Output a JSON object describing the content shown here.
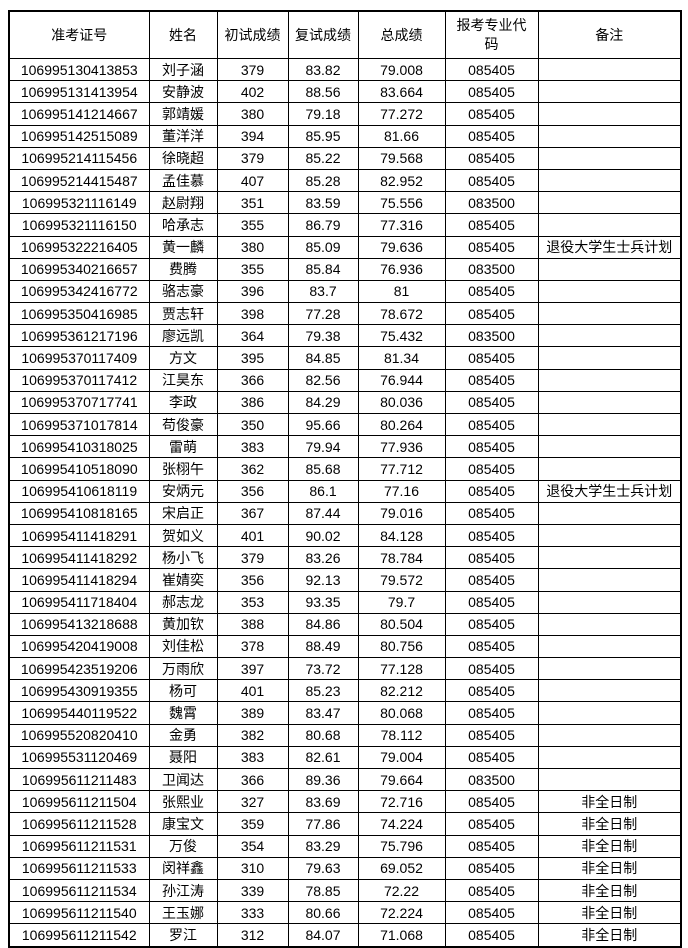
{
  "table": {
    "columns": [
      "准考证号",
      "姓名",
      "初试成绩",
      "复试成绩",
      "总成绩",
      "报考专业代码",
      "备注"
    ],
    "rows": [
      [
        "106995130413853",
        "刘子涵",
        "379",
        "83.82",
        "79.008",
        "085405",
        ""
      ],
      [
        "106995131413954",
        "安静波",
        "402",
        "88.56",
        "83.664",
        "085405",
        ""
      ],
      [
        "106995141214667",
        "郭靖媛",
        "380",
        "79.18",
        "77.272",
        "085405",
        ""
      ],
      [
        "106995142515089",
        "董洋洋",
        "394",
        "85.95",
        "81.66",
        "085405",
        ""
      ],
      [
        "106995214115456",
        "徐晓超",
        "379",
        "85.22",
        "79.568",
        "085405",
        ""
      ],
      [
        "106995214415487",
        "孟佳慕",
        "407",
        "85.28",
        "82.952",
        "085405",
        ""
      ],
      [
        "106995321116149",
        "赵尉翔",
        "351",
        "83.59",
        "75.556",
        "083500",
        ""
      ],
      [
        "106995321116150",
        "哈承志",
        "355",
        "86.79",
        "77.316",
        "085405",
        ""
      ],
      [
        "106995322216405",
        "黄一麟",
        "380",
        "85.09",
        "79.636",
        "085405",
        "退役大学生士兵计划"
      ],
      [
        "106995340216657",
        "费腾",
        "355",
        "85.84",
        "76.936",
        "083500",
        ""
      ],
      [
        "106995342416772",
        "骆志豪",
        "396",
        "83.7",
        "81",
        "085405",
        ""
      ],
      [
        "106995350416985",
        "贾志轩",
        "398",
        "77.28",
        "78.672",
        "085405",
        ""
      ],
      [
        "106995361217196",
        "廖远凯",
        "364",
        "79.38",
        "75.432",
        "083500",
        ""
      ],
      [
        "106995370117409",
        "方文",
        "395",
        "84.85",
        "81.34",
        "085405",
        ""
      ],
      [
        "106995370117412",
        "江昊东",
        "366",
        "82.56",
        "76.944",
        "085405",
        ""
      ],
      [
        "106995370717741",
        "李政",
        "386",
        "84.29",
        "80.036",
        "085405",
        ""
      ],
      [
        "106995371017814",
        "苟俊豪",
        "350",
        "95.66",
        "80.264",
        "085405",
        ""
      ],
      [
        "106995410318025",
        "雷萌",
        "383",
        "79.94",
        "77.936",
        "085405",
        ""
      ],
      [
        "106995410518090",
        "张栩午",
        "362",
        "85.68",
        "77.712",
        "085405",
        ""
      ],
      [
        "106995410618119",
        "安炳元",
        "356",
        "86.1",
        "77.16",
        "085405",
        "退役大学生士兵计划"
      ],
      [
        "106995410818165",
        "宋启正",
        "367",
        "87.44",
        "79.016",
        "085405",
        ""
      ],
      [
        "106995411418291",
        "贺如义",
        "401",
        "90.02",
        "84.128",
        "085405",
        ""
      ],
      [
        "106995411418292",
        "杨小飞",
        "379",
        "83.26",
        "78.784",
        "085405",
        ""
      ],
      [
        "106995411418294",
        "崔婧奕",
        "356",
        "92.13",
        "79.572",
        "085405",
        ""
      ],
      [
        "106995411718404",
        "郝志龙",
        "353",
        "93.35",
        "79.7",
        "085405",
        ""
      ],
      [
        "106995413218688",
        "黄加钦",
        "388",
        "84.86",
        "80.504",
        "085405",
        ""
      ],
      [
        "106995420419008",
        "刘佳松",
        "378",
        "88.49",
        "80.756",
        "085405",
        ""
      ],
      [
        "106995423519206",
        "万雨欣",
        "397",
        "73.72",
        "77.128",
        "085405",
        ""
      ],
      [
        "106995430919355",
        "杨可",
        "401",
        "85.23",
        "82.212",
        "085405",
        ""
      ],
      [
        "106995440119522",
        "魏霄",
        "389",
        "83.47",
        "80.068",
        "085405",
        ""
      ],
      [
        "106995520820410",
        "金勇",
        "382",
        "80.68",
        "78.112",
        "085405",
        ""
      ],
      [
        "106995531120469",
        "聂阳",
        "383",
        "82.61",
        "79.004",
        "085405",
        ""
      ],
      [
        "106995611211483",
        "卫闻达",
        "366",
        "89.36",
        "79.664",
        "083500",
        ""
      ],
      [
        "106995611211504",
        "张熙业",
        "327",
        "83.69",
        "72.716",
        "085405",
        "非全日制"
      ],
      [
        "106995611211528",
        "康宝文",
        "359",
        "77.86",
        "74.224",
        "085405",
        "非全日制"
      ],
      [
        "106995611211531",
        "万俊",
        "354",
        "83.29",
        "75.796",
        "085405",
        "非全日制"
      ],
      [
        "106995611211533",
        "闵祥鑫",
        "310",
        "79.63",
        "69.052",
        "085405",
        "非全日制"
      ],
      [
        "106995611211534",
        "孙江涛",
        "339",
        "78.85",
        "72.22",
        "085405",
        "非全日制"
      ],
      [
        "106995611211540",
        "王玉娜",
        "333",
        "80.66",
        "72.224",
        "085405",
        "非全日制"
      ],
      [
        "106995611211542",
        "罗江",
        "312",
        "84.07",
        "71.068",
        "085405",
        "非全日制"
      ]
    ]
  }
}
